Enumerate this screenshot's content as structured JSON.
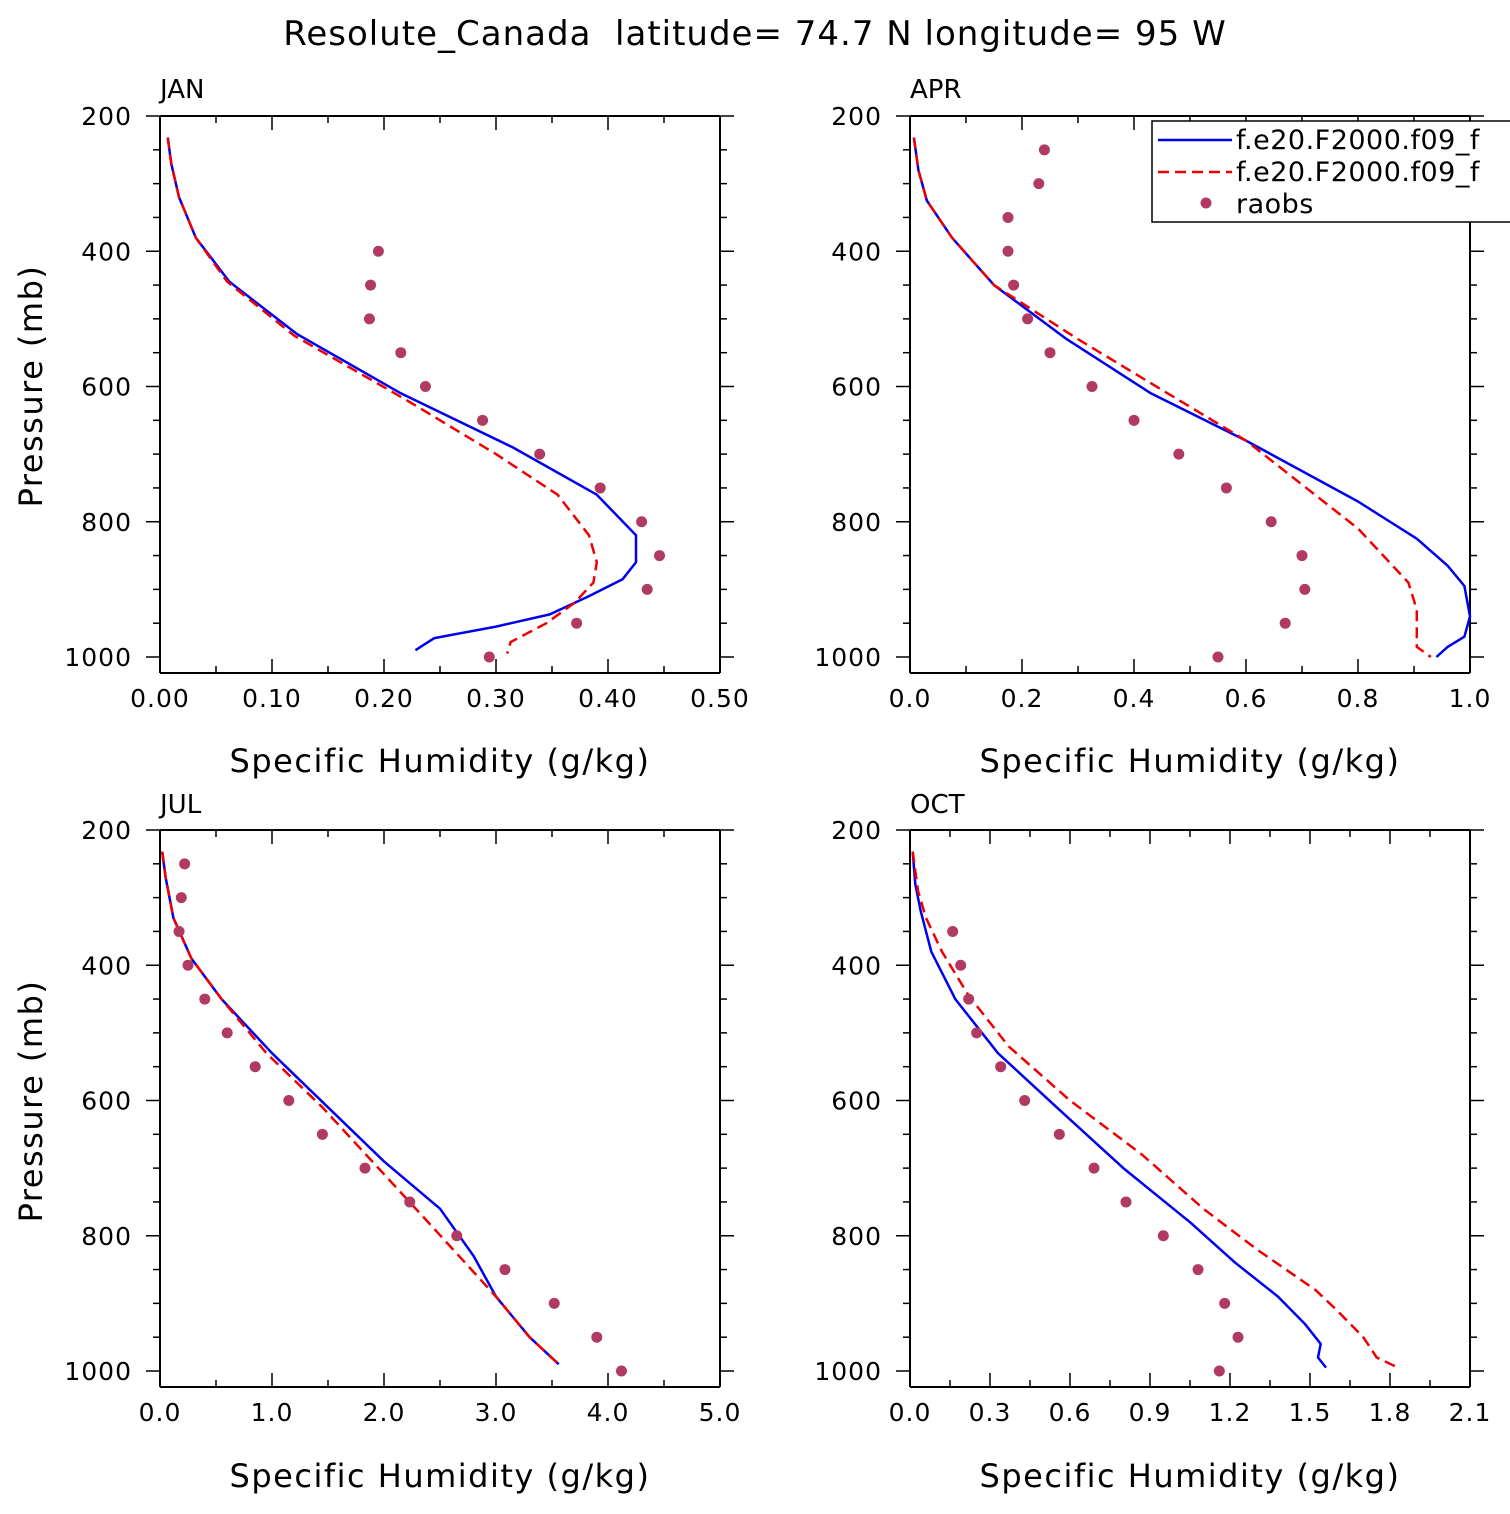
{
  "title": "Resolute_Canada  latitude= 74.7 N longitude= 95 W",
  "colors": {
    "model1": "#0000ee",
    "model2": "#ee0000",
    "raobs": "#b03a62",
    "axis": "#000000"
  },
  "legend": {
    "entries": [
      {
        "label": "f.e20.F2000.f09_f",
        "style": "solid",
        "color": "#0000ee"
      },
      {
        "label": "f.e20.F2000.f09_f",
        "style": "dashed",
        "color": "#ee0000"
      },
      {
        "label": "raobs",
        "style": "dot",
        "color": "#b03a62"
      }
    ]
  },
  "chart_data": [
    {
      "type": "line",
      "month": "JAN",
      "xlabel": "Specific Humidity (g/kg)",
      "ylabel": "Pressure (mb)",
      "xlim": [
        0,
        0.5
      ],
      "ylim": [
        200,
        1000
      ],
      "y_inverted": true,
      "xticks": [
        0,
        0.1,
        0.2,
        0.3,
        0.4,
        0.5
      ],
      "xtick_labels": [
        "0.00",
        "0.10",
        "0.20",
        "0.30",
        "0.40",
        "0.50"
      ],
      "yticks": [
        200,
        400,
        600,
        800,
        1000
      ],
      "ytick_labels": [
        "200",
        "400",
        "600",
        "800",
        "1000"
      ],
      "series": [
        {
          "name": "f.e20.F2000.f09_f",
          "style": "solid",
          "x": [
            0.007,
            0.01,
            0.017,
            0.032,
            0.062,
            0.122,
            0.215,
            0.315,
            0.39,
            0.425,
            0.425,
            0.413,
            0.383,
            0.348,
            0.3,
            0.245,
            0.228
          ],
          "y": [
            232,
            270,
            320,
            380,
            445,
            522,
            610,
            690,
            760,
            820,
            860,
            885,
            910,
            937,
            955,
            972,
            990
          ]
        },
        {
          "name": "f.e20.F2000.f09_f",
          "style": "dashed",
          "x": [
            0.007,
            0.01,
            0.017,
            0.032,
            0.06,
            0.12,
            0.22,
            0.3,
            0.355,
            0.383,
            0.39,
            0.387,
            0.37,
            0.345,
            0.313,
            0.31
          ],
          "y": [
            232,
            270,
            320,
            380,
            445,
            525,
            620,
            700,
            760,
            820,
            860,
            890,
            920,
            950,
            978,
            995
          ]
        },
        {
          "name": "raobs",
          "style": "dot",
          "x": [
            0.195,
            0.188,
            0.187,
            0.215,
            0.237,
            0.288,
            0.339,
            0.393,
            0.43,
            0.446,
            0.435,
            0.372,
            0.294
          ],
          "y": [
            400,
            450,
            500,
            550,
            600,
            650,
            700,
            750,
            800,
            850,
            900,
            950,
            1000
          ]
        }
      ]
    },
    {
      "type": "line",
      "month": "APR",
      "xlabel": "Specific Humidity (g/kg)",
      "ylabel": "",
      "xlim": [
        0,
        1.0
      ],
      "ylim": [
        200,
        1000
      ],
      "y_inverted": true,
      "xticks": [
        0,
        0.2,
        0.4,
        0.6,
        0.8,
        1.0
      ],
      "xtick_labels": [
        "0.0",
        "0.2",
        "0.4",
        "0.6",
        "0.8",
        "1.0"
      ],
      "yticks": [
        200,
        400,
        600,
        800,
        1000
      ],
      "ytick_labels": [
        "200",
        "400",
        "600",
        "800",
        "1000"
      ],
      "series": [
        {
          "name": "f.e20.F2000.f09_f",
          "style": "solid",
          "x": [
            0.007,
            0.015,
            0.03,
            0.075,
            0.15,
            0.28,
            0.43,
            0.6,
            0.8,
            0.905,
            0.96,
            0.99,
            1.0,
            0.99,
            0.96,
            0.94
          ],
          "y": [
            232,
            280,
            325,
            380,
            450,
            530,
            610,
            680,
            770,
            825,
            865,
            895,
            940,
            970,
            985,
            1000
          ]
        },
        {
          "name": "f.e20.F2000.f09_f",
          "style": "dashed",
          "x": [
            0.007,
            0.015,
            0.03,
            0.075,
            0.15,
            0.3,
            0.46,
            0.6,
            0.8,
            0.89,
            0.905,
            0.905,
            0.93
          ],
          "y": [
            232,
            280,
            325,
            380,
            450,
            530,
            610,
            680,
            810,
            890,
            930,
            985,
            1000
          ]
        },
        {
          "name": "raobs",
          "style": "dot",
          "x": [
            0.24,
            0.23,
            0.175,
            0.175,
            0.185,
            0.21,
            0.25,
            0.325,
            0.4,
            0.48,
            0.565,
            0.645,
            0.7,
            0.705,
            0.67,
            0.55
          ],
          "y": [
            250,
            300,
            350,
            400,
            450,
            500,
            550,
            600,
            650,
            700,
            750,
            800,
            850,
            900,
            950,
            1000
          ]
        }
      ]
    },
    {
      "type": "line",
      "month": "JUL",
      "xlabel": "Specific Humidity (g/kg)",
      "ylabel": "Pressure (mb)",
      "xlim": [
        0,
        5.0
      ],
      "ylim": [
        200,
        1000
      ],
      "y_inverted": true,
      "xticks": [
        0,
        1,
        2,
        3,
        4,
        5
      ],
      "xtick_labels": [
        "0.0",
        "1.0",
        "2.0",
        "3.0",
        "4.0",
        "5.0"
      ],
      "yticks": [
        200,
        400,
        600,
        800,
        1000
      ],
      "ytick_labels": [
        "200",
        "400",
        "600",
        "800",
        "1000"
      ],
      "series": [
        {
          "name": "f.e20.F2000.f09_f",
          "style": "solid",
          "x": [
            0.02,
            0.05,
            0.12,
            0.28,
            0.55,
            1.0,
            1.5,
            2.0,
            2.5,
            2.8,
            3.0,
            3.3,
            3.56
          ],
          "y": [
            232,
            270,
            330,
            390,
            450,
            530,
            610,
            690,
            760,
            830,
            890,
            950,
            990
          ]
        },
        {
          "name": "f.e20.F2000.f09_f",
          "style": "dashed",
          "x": [
            0.02,
            0.05,
            0.12,
            0.28,
            0.55,
            0.95,
            1.45,
            1.95,
            2.45,
            3.0,
            3.3,
            3.56
          ],
          "y": [
            232,
            270,
            330,
            390,
            450,
            530,
            610,
            700,
            790,
            890,
            950,
            990
          ]
        },
        {
          "name": "raobs",
          "style": "dot",
          "x": [
            0.22,
            0.19,
            0.17,
            0.25,
            0.4,
            0.6,
            0.85,
            1.15,
            1.45,
            1.83,
            2.23,
            2.65,
            3.08,
            3.52,
            3.9,
            4.12
          ],
          "y": [
            250,
            300,
            350,
            400,
            450,
            500,
            550,
            600,
            650,
            700,
            750,
            800,
            850,
            900,
            950,
            1000
          ]
        }
      ]
    },
    {
      "type": "line",
      "month": "OCT",
      "xlabel": "Specific Humidity (g/kg)",
      "ylabel": "",
      "xlim": [
        0,
        2.1
      ],
      "ylim": [
        200,
        1000
      ],
      "y_inverted": true,
      "xticks": [
        0,
        0.3,
        0.6,
        0.9,
        1.2,
        1.5,
        1.8,
        2.1
      ],
      "xtick_labels": [
        "0.0",
        "0.3",
        "0.6",
        "0.9",
        "1.2",
        "1.5",
        "1.8",
        "2.1"
      ],
      "yticks": [
        200,
        400,
        600,
        800,
        1000
      ],
      "ytick_labels": [
        "200",
        "400",
        "600",
        "800",
        "1000"
      ],
      "series": [
        {
          "name": "f.e20.F2000.f09_f",
          "style": "solid",
          "x": [
            0.01,
            0.02,
            0.04,
            0.08,
            0.17,
            0.33,
            0.55,
            0.8,
            1.05,
            1.22,
            1.38,
            1.48,
            1.54,
            1.53,
            1.56
          ],
          "y": [
            232,
            280,
            320,
            380,
            450,
            530,
            610,
            700,
            780,
            840,
            890,
            930,
            960,
            980,
            995
          ]
        },
        {
          "name": "f.e20.F2000.f09_f",
          "style": "dashed",
          "x": [
            0.01,
            0.03,
            0.06,
            0.12,
            0.22,
            0.37,
            0.6,
            0.87,
            1.1,
            1.3,
            1.52,
            1.6,
            1.7,
            1.75,
            1.83
          ],
          "y": [
            232,
            290,
            330,
            380,
            445,
            520,
            600,
            680,
            760,
            820,
            880,
            910,
            950,
            980,
            995
          ]
        },
        {
          "name": "raobs",
          "style": "dot",
          "x": [
            0.16,
            0.19,
            0.22,
            0.25,
            0.34,
            0.43,
            0.56,
            0.69,
            0.81,
            0.95,
            1.08,
            1.18,
            1.23,
            1.16
          ],
          "y": [
            350,
            400,
            450,
            500,
            550,
            600,
            650,
            700,
            750,
            800,
            850,
            900,
            950,
            1000
          ]
        }
      ]
    }
  ]
}
